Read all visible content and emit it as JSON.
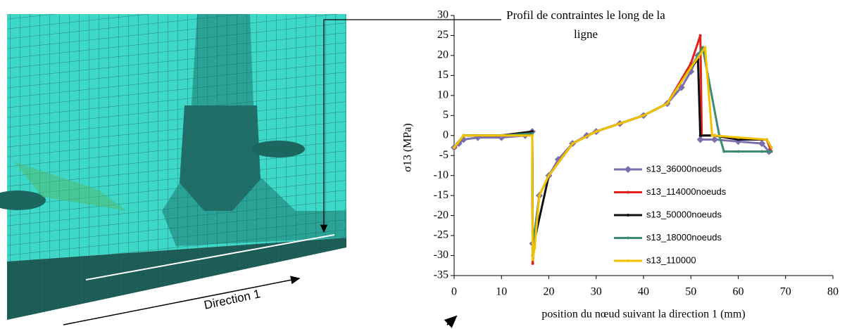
{
  "chart_data": {
    "type": "line",
    "title": "Profil de contraintes le long de la ligne",
    "y_label": "σ13 (MPa)",
    "x_label": "position du nœud suivant la direction 1 (mm)",
    "xlim": [
      0,
      80
    ],
    "xticks": [
      0,
      10,
      20,
      30,
      40,
      50,
      60,
      70,
      80
    ],
    "ylim": [
      -35,
      30
    ],
    "yticks": [
      30,
      25,
      20,
      15,
      10,
      5,
      0,
      -5,
      -10,
      -15,
      -20,
      -25,
      -30,
      -35
    ],
    "grid": false,
    "legend": "bottom-right",
    "series": [
      {
        "name": "s13_36000noeuds",
        "color": "#7b6fae",
        "marker": "diamond",
        "x": [
          0,
          1,
          2,
          5,
          10,
          15,
          16.5,
          16.6,
          17,
          18,
          20,
          22,
          25,
          28,
          30,
          35,
          40,
          45,
          48,
          50,
          51.5,
          52,
          55,
          60,
          65,
          66.5
        ],
        "values": [
          -3,
          -2,
          -1,
          -0.5,
          -0.5,
          0,
          1,
          -27,
          -24,
          -15,
          -10,
          -6,
          -2,
          0,
          1,
          3,
          5,
          8,
          12,
          16,
          20,
          -1,
          -1,
          -1.5,
          -2,
          -4
        ]
      },
      {
        "name": "s13_114000noeuds",
        "color": "#e0201b",
        "marker": "circle",
        "x": [
          0,
          2,
          10,
          16.5,
          16.6,
          17,
          18,
          20,
          25,
          30,
          35,
          40,
          45,
          50,
          52,
          52.3,
          55,
          60,
          66,
          67
        ],
        "values": [
          -3,
          0,
          0,
          1,
          -32,
          -26,
          -15,
          -10,
          -2,
          1,
          3,
          5,
          8,
          18,
          25,
          0,
          0,
          -1,
          -1,
          -4
        ]
      },
      {
        "name": "s13_50000noeuds",
        "color": "#111111",
        "marker": "circle",
        "x": [
          0,
          2,
          10,
          16.5,
          16.6,
          17,
          20,
          25,
          30,
          40,
          45,
          50,
          51.5,
          52,
          55,
          60,
          66,
          67
        ],
        "values": [
          -3,
          0,
          0,
          1,
          -30,
          -26,
          -10,
          -2,
          1,
          5,
          8,
          17,
          19,
          0,
          0,
          -1,
          -1,
          -3
        ]
      },
      {
        "name": "s13_18000noeuds",
        "color": "#3d8a72",
        "marker": "circle",
        "x": [
          0,
          2,
          10,
          16.5,
          16.6,
          18,
          20,
          25,
          30,
          40,
          45,
          50,
          52.5,
          56,
          57,
          60,
          65,
          67
        ],
        "values": [
          -3,
          0,
          0,
          0.5,
          -28,
          -15,
          -10,
          -2,
          1,
          5,
          8,
          17,
          22,
          0,
          -4,
          -4,
          -4,
          -4
        ]
      },
      {
        "name": "s13_110000",
        "color": "#f2c200",
        "marker": "circle",
        "x": [
          0,
          2,
          10,
          16.5,
          16.6,
          17,
          18,
          20,
          25,
          30,
          35,
          40,
          45,
          50,
          53,
          54.5,
          55,
          60,
          66,
          67
        ],
        "values": [
          -3,
          0,
          0,
          0,
          -31,
          -28,
          -15,
          -10,
          -2,
          1,
          3,
          5,
          8,
          17,
          22,
          0,
          0,
          -0.5,
          -1,
          -3
        ]
      }
    ]
  },
  "image": {
    "label": "Direction 1"
  }
}
